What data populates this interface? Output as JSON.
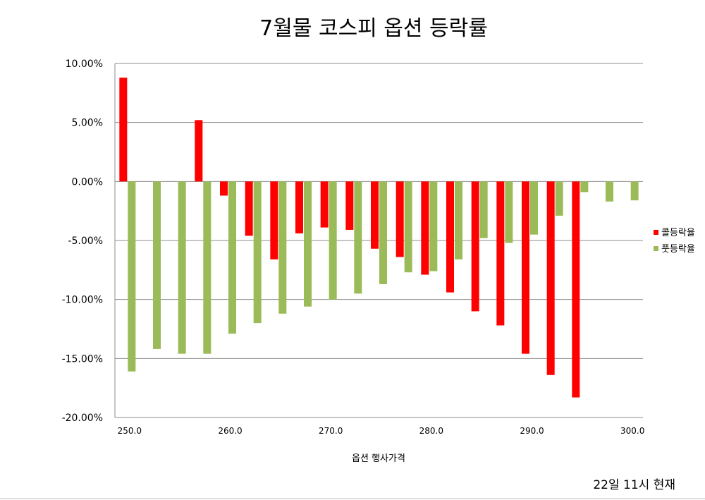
{
  "chart_data": {
    "type": "bar",
    "title": "7월물 코스피 옵션 등락률",
    "xlabel": "옵션 행사가격",
    "ylabel": "",
    "ylim": [
      -20,
      10
    ],
    "yticks": [
      "10.00%",
      "5.00%",
      "0.00%",
      "-5.00%",
      "-10.00%",
      "-15.00%",
      "-20.00%"
    ],
    "ytick_values": [
      10,
      5,
      0,
      -5,
      -10,
      -15,
      -20
    ],
    "xticks": [
      "250.0",
      "260.0",
      "270.0",
      "280.0",
      "290.0",
      "300.0"
    ],
    "xtick_values": [
      250,
      260,
      270,
      280,
      290,
      300
    ],
    "x": [
      250.0,
      252.5,
      255.0,
      257.5,
      260.0,
      262.5,
      265.0,
      267.5,
      270.0,
      272.5,
      275.0,
      277.5,
      280.0,
      282.5,
      285.0,
      287.5,
      290.0,
      292.5,
      295.0,
      297.5,
      300.0
    ],
    "series": [
      {
        "name": "콜등락율",
        "color": "#ff0000",
        "values": [
          8.8,
          null,
          null,
          5.2,
          -1.2,
          -4.6,
          -6.6,
          -4.4,
          -3.9,
          -4.1,
          -5.7,
          -6.4,
          -7.9,
          -9.4,
          -11.0,
          -12.2,
          -14.6,
          -16.4,
          -18.3,
          null,
          null
        ]
      },
      {
        "name": "풋등락율",
        "color": "#9bbb59",
        "values": [
          -16.1,
          -14.2,
          -14.6,
          -14.6,
          -12.9,
          -12.0,
          -11.2,
          -10.6,
          -10.0,
          -9.5,
          -8.7,
          -7.7,
          -7.6,
          -6.6,
          -4.8,
          -5.2,
          -4.5,
          -2.9,
          -0.9,
          -1.7,
          -1.6
        ]
      }
    ],
    "grid": true,
    "legend": "right"
  },
  "footnote": "22일 11시 현재"
}
